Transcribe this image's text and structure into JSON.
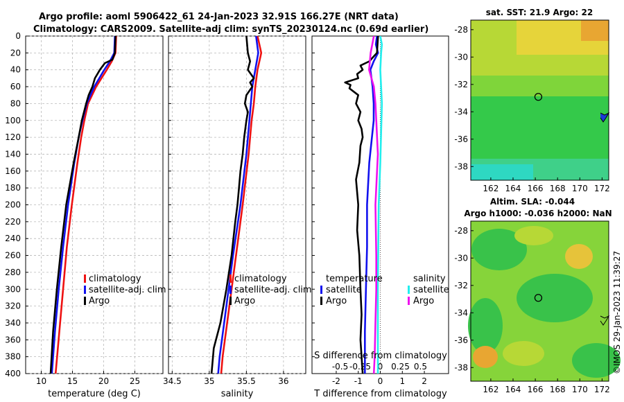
{
  "title": {
    "line1": "Argo profile: aoml 5906422_61 24-Jan-2023 32.91S 166.27E (NRT data)",
    "line2": "Climatology: CARS2009. Satellite-adj clim: synTS_20230124.nc (0.69d earlier)"
  },
  "maps": {
    "sst_title": "sat. SST: 21.9 Argo: 22",
    "sla_title1": "Altim. SLA: -0.044",
    "sla_title2": "Argo h1000: -0.036 h2000: NaN",
    "lon_ticks": [
      "162",
      "164",
      "166",
      "168",
      "170",
      "172"
    ],
    "lat_ticks": [
      "-28",
      "-30",
      "-32",
      "-34",
      "-36",
      "-38"
    ],
    "float_lon": 166.27,
    "float_lat": -32.91,
    "xlim": [
      160.2,
      172.6
    ],
    "ylim": [
      -39.0,
      -27.3
    ]
  },
  "footer": {
    "stamp": "©IMOS 29-Jan-2023 11:39:27"
  },
  "depth_ticks": [
    "0",
    "20",
    "40",
    "60",
    "80",
    "100",
    "120",
    "140",
    "160",
    "180",
    "200",
    "220",
    "240",
    "260",
    "280",
    "300",
    "320",
    "340",
    "360",
    "380",
    "400"
  ],
  "legend": {
    "climatology": "climatology",
    "satellite_adj": "satellite-adj. clim",
    "argo": "Argo",
    "temperature": "temperature",
    "salinity": "salinity",
    "satellite": "satellite",
    "argo2": "Argo"
  },
  "colors": {
    "climatology": "#ee1111",
    "satellite": "#1111ee",
    "argo": "#000000",
    "sal_sat": "#22eeee",
    "sal_argo": "#ee11ee"
  },
  "chart_data": [
    {
      "type": "line",
      "title": "",
      "xlabel": "temperature (deg C)",
      "ylabel": "",
      "xlim": [
        7.5,
        29.5
      ],
      "ylim": [
        400,
        0
      ],
      "xticks": [
        "10",
        "15",
        "20",
        "25"
      ],
      "series": [
        {
          "name": "climatology",
          "depth": [
            0,
            20,
            30,
            40,
            60,
            80,
            100,
            120,
            150,
            200,
            250,
            300,
            350,
            400
          ],
          "values": [
            22.0,
            21.9,
            21.3,
            20.5,
            18.8,
            17.5,
            16.9,
            16.4,
            15.8,
            14.9,
            14.1,
            13.5,
            12.9,
            12.3
          ]
        },
        {
          "name": "satellite-adj. clim",
          "depth": [
            0,
            20,
            30,
            40,
            60,
            80,
            100,
            120,
            150,
            200,
            250,
            300,
            350,
            400
          ],
          "values": [
            21.8,
            21.7,
            21.0,
            20.1,
            18.5,
            17.3,
            16.6,
            16.0,
            15.3,
            14.3,
            13.5,
            12.8,
            12.2,
            11.7
          ]
        },
        {
          "name": "Argo",
          "depth": [
            0,
            20,
            28,
            32,
            36,
            40,
            45,
            50,
            60,
            70,
            80,
            100,
            120,
            150,
            200,
            250,
            300,
            350,
            400
          ],
          "values": [
            21.9,
            21.8,
            21.4,
            20.2,
            19.8,
            19.4,
            19.0,
            18.6,
            18.2,
            17.6,
            17.2,
            16.5,
            16.0,
            15.2,
            14.0,
            13.2,
            12.5,
            11.9,
            11.5
          ]
        }
      ]
    },
    {
      "type": "line",
      "title": "",
      "xlabel": "salinity",
      "ylabel": "",
      "xlim": [
        34.45,
        36.3
      ],
      "ylim": [
        400,
        0
      ],
      "xticks": [
        "34.5",
        "35",
        "35.5",
        "36"
      ],
      "series": [
        {
          "name": "climatology",
          "depth": [
            0,
            20,
            40,
            60,
            80,
            100,
            140,
            200,
            260,
            300,
            340,
            380,
            400
          ],
          "values": [
            35.65,
            35.7,
            35.65,
            35.62,
            35.6,
            35.57,
            35.53,
            35.45,
            35.36,
            35.3,
            35.24,
            35.18,
            35.16
          ]
        },
        {
          "name": "satellite-adj. clim",
          "depth": [
            0,
            20,
            40,
            60,
            80,
            100,
            140,
            200,
            260,
            300,
            340,
            380,
            400
          ],
          "values": [
            35.63,
            35.66,
            35.62,
            35.58,
            35.56,
            35.54,
            35.5,
            35.42,
            35.32,
            35.26,
            35.2,
            35.14,
            35.12
          ]
        },
        {
          "name": "Argo",
          "depth": [
            0,
            20,
            30,
            40,
            50,
            55,
            60,
            70,
            80,
            90,
            100,
            120,
            140,
            160,
            180,
            200,
            220,
            260,
            300,
            340,
            370,
            400
          ],
          "values": [
            35.5,
            35.52,
            35.55,
            35.52,
            35.6,
            35.55,
            35.58,
            35.5,
            35.48,
            35.52,
            35.5,
            35.47,
            35.45,
            35.42,
            35.4,
            35.38,
            35.35,
            35.3,
            35.23,
            35.15,
            35.06,
            35.03
          ]
        }
      ]
    },
    {
      "type": "line",
      "title": "",
      "xlabel": "T difference from climatology",
      "ylabel": "",
      "xlim": [
        -3.1,
        3.1
      ],
      "ylim": [
        400,
        0
      ],
      "xticks": [
        "-2",
        "-1",
        "0",
        "1",
        "2"
      ],
      "secondary_axis": {
        "label": "S difference from climatology",
        "ticks": [
          "-0.5",
          "-0.25",
          "0",
          "0.25",
          "0.5"
        ],
        "xlim": [
          -0.85,
          0.85
        ]
      },
      "series": [
        {
          "name": "temperature satellite",
          "depth": [
            0,
            10,
            20,
            30,
            40,
            60,
            80,
            100,
            150,
            200,
            250,
            300,
            350,
            400
          ],
          "values": [
            -0.15,
            -0.2,
            -0.1,
            -0.3,
            -0.45,
            -0.35,
            -0.3,
            -0.3,
            -0.5,
            -0.6,
            -0.6,
            -0.65,
            -0.7,
            -0.7
          ]
        },
        {
          "name": "temperature Argo",
          "depth": [
            0,
            20,
            30,
            35,
            40,
            45,
            50,
            55,
            58,
            62,
            70,
            80,
            90,
            100,
            110,
            120,
            130,
            150,
            170,
            200,
            230,
            260,
            300,
            330,
            360,
            380,
            400
          ],
          "values": [
            -0.1,
            -0.15,
            -0.5,
            -0.9,
            -0.8,
            -1.05,
            -1.0,
            -1.6,
            -1.35,
            -1.4,
            -1.0,
            -1.1,
            -0.9,
            -1.0,
            -0.85,
            -0.8,
            -0.9,
            -0.95,
            -1.1,
            -1.0,
            -1.05,
            -0.95,
            -0.9,
            -0.85,
            -0.9,
            -0.85,
            -0.8
          ]
        },
        {
          "name": "salinity satellite",
          "depth": [
            0,
            10,
            20,
            40,
            80,
            150,
            200,
            300,
            400
          ],
          "values": [
            0.0,
            0.02,
            0.01,
            0.0,
            0.02,
            0.0,
            -0.02,
            -0.03,
            -0.03
          ]
        },
        {
          "name": "salinity Argo",
          "depth": [
            0,
            10,
            20,
            40,
            60,
            80,
            100,
            140,
            200,
            260,
            300,
            340,
            380,
            400
          ],
          "values": [
            -0.08,
            -0.1,
            -0.12,
            -0.14,
            -0.08,
            -0.06,
            -0.05,
            -0.03,
            -0.06,
            -0.05,
            -0.05,
            -0.06,
            -0.07,
            -0.08
          ]
        }
      ]
    }
  ]
}
